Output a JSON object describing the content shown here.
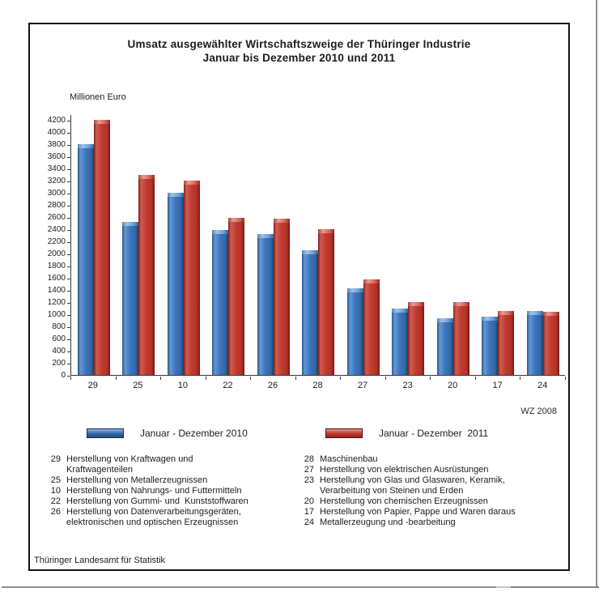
{
  "title": {
    "line1": "Umsatz ausgewählter Wirtschaftszweige der Thüringer Industrie",
    "line2": "Januar bis Dezember 2010 und 2011"
  },
  "note": "WZ 2008",
  "footer": "Thüringer Landesamt für Statistik",
  "legend": [
    {
      "label": "Januar - Dezember 2010",
      "color": "#3b74c0"
    },
    {
      "label": "Januar - Dezember  2011",
      "color": "#c23b30"
    }
  ],
  "chart_data": {
    "type": "bar",
    "title": "Umsatz ausgewählter Wirtschaftszweige der Thüringer Industrie, Januar bis Dezember 2010 und 2011",
    "ylabel": "Millionen Euro",
    "xlabel": "",
    "ylim": [
      0,
      4200
    ],
    "ytick_step": 200,
    "grid": false,
    "legend_position": "bottom",
    "categories": [
      "29",
      "25",
      "10",
      "22",
      "26",
      "28",
      "27",
      "23",
      "20",
      "17",
      "24"
    ],
    "series": [
      {
        "name": "Januar - Dezember 2010",
        "color": "#3b74c0",
        "values": [
          3800,
          2520,
          3000,
          2390,
          2320,
          2050,
          1430,
          1100,
          930,
          960,
          1060
        ]
      },
      {
        "name": "Januar - Dezember 2011",
        "color": "#c23b30",
        "values": [
          4200,
          3290,
          3200,
          2590,
          2570,
          2400,
          1580,
          1200,
          1200,
          1050,
          1045
        ]
      }
    ]
  },
  "sector_key": {
    "left": [
      {
        "code": "29",
        "label": "Herstellung von Kraftwagen und\nKraftwagenteilen"
      },
      {
        "code": "25",
        "label": "Herstellung von Metallerzeugnissen"
      },
      {
        "code": "10",
        "label": "Herstellung von Nahrungs- und Futtermitteln"
      },
      {
        "code": "22",
        "label": "Herstellung von Gummi- und  Kunststoffwaren"
      },
      {
        "code": "26",
        "label": "Herstellung von Datenverarbeitungsgeräten,\nelektronischen und optischen Erzeugnissen"
      }
    ],
    "right": [
      {
        "code": "28",
        "label": "Maschinenbau"
      },
      {
        "code": "27",
        "label": "Herstellung von elektrischen Ausrüstungen"
      },
      {
        "code": "23",
        "label": "Herstellung von Glas und Glaswaren, Keramik,\nVerarbeitung von Steinen und Erden"
      },
      {
        "code": "20",
        "label": "Herstellung von chemischen Erzeugnissen"
      },
      {
        "code": "17",
        "label": "Herstellung von Papier, Pappe und Waren daraus"
      },
      {
        "code": "24",
        "label": "Metallerzeugung und -bearbeitung"
      }
    ]
  }
}
